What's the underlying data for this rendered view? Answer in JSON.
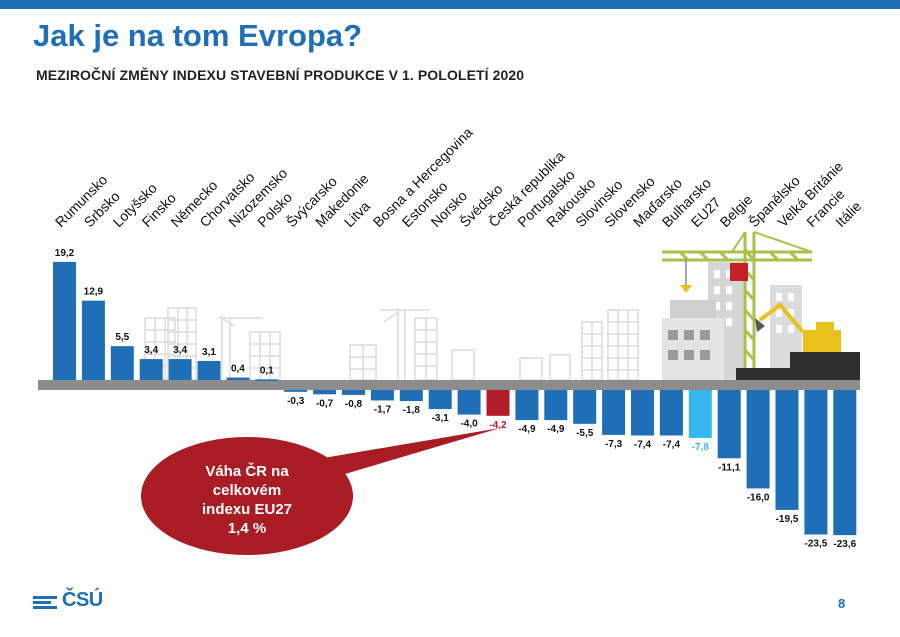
{
  "header": {
    "title": "Jak je na tom Evropa?",
    "subtitle": "MEZIROČNÍ ZMĚNY INDEXU STAVEBNÍ PRODUKCE V 1. POLOLETÍ 2020"
  },
  "callout": {
    "lines": [
      "Váha ČR na",
      "celkovém",
      "indexu EU27",
      "1,4 %"
    ]
  },
  "footer": {
    "logo_text": "ČSÚ",
    "page_number": "8"
  },
  "colors": {
    "bar": "#1f6fb8",
    "czech": "#b01d27",
    "eu27": "#38b6f0",
    "baseline": "#8c8c8c",
    "callout": "#a91c23"
  },
  "chart_data": {
    "type": "bar",
    "categories": [
      "Rumunsko",
      "Srbsko",
      "Lotyšsko",
      "Finsko",
      "Německo",
      "Chorvatsko",
      "Nizozemsko",
      "Polsko",
      "Švýcarsko",
      "Makedonie",
      "Litva",
      "Bosna a Hercegovina",
      "Estonsko",
      "Norsko",
      "Švédsko",
      "Česká republika",
      "Portugalsko",
      "Rakousko",
      "Slovinsko",
      "Slovensko",
      "Maďarsko",
      "Bulharsko",
      "EU27",
      "Belgie",
      "Španělsko",
      "Velká Británie",
      "Francie",
      "Itálie"
    ],
    "values": [
      19.2,
      12.9,
      5.5,
      3.4,
      3.4,
      3.1,
      0.4,
      0.1,
      -0.3,
      -0.7,
      -0.8,
      -1.7,
      -1.8,
      -3.1,
      -4.0,
      -4.2,
      -4.9,
      -4.9,
      -5.5,
      -7.3,
      -7.4,
      -7.4,
      -7.8,
      -11.1,
      -16.0,
      -19.5,
      -23.5,
      -23.6
    ],
    "value_labels": [
      "19,2",
      "12,9",
      "5,5",
      "3,4",
      "3,4",
      "3,1",
      "0,4",
      "0,1",
      "-0,3",
      "-0,7",
      "-0,8",
      "-1,7",
      "-1,8",
      "-3,1",
      "-4,0",
      "-4,2",
      "-4,9",
      "-4,9",
      "-5,5",
      "-7,3",
      "-7,4",
      "-7,4",
      "-7,8",
      "-11,1",
      "-16,0",
      "-19,5",
      "-23,5",
      "-23,6"
    ],
    "highlight": {
      "Česká republika": "czech",
      "EU27": "eu27"
    },
    "title": "MEZIROČNÍ ZMĚNY INDEXU STAVEBNÍ PRODUKCE V 1. POLOLETÍ 2020",
    "xlabel": "",
    "ylabel": "",
    "ylim": [
      -24,
      20
    ],
    "grid": false,
    "legend": "none"
  }
}
